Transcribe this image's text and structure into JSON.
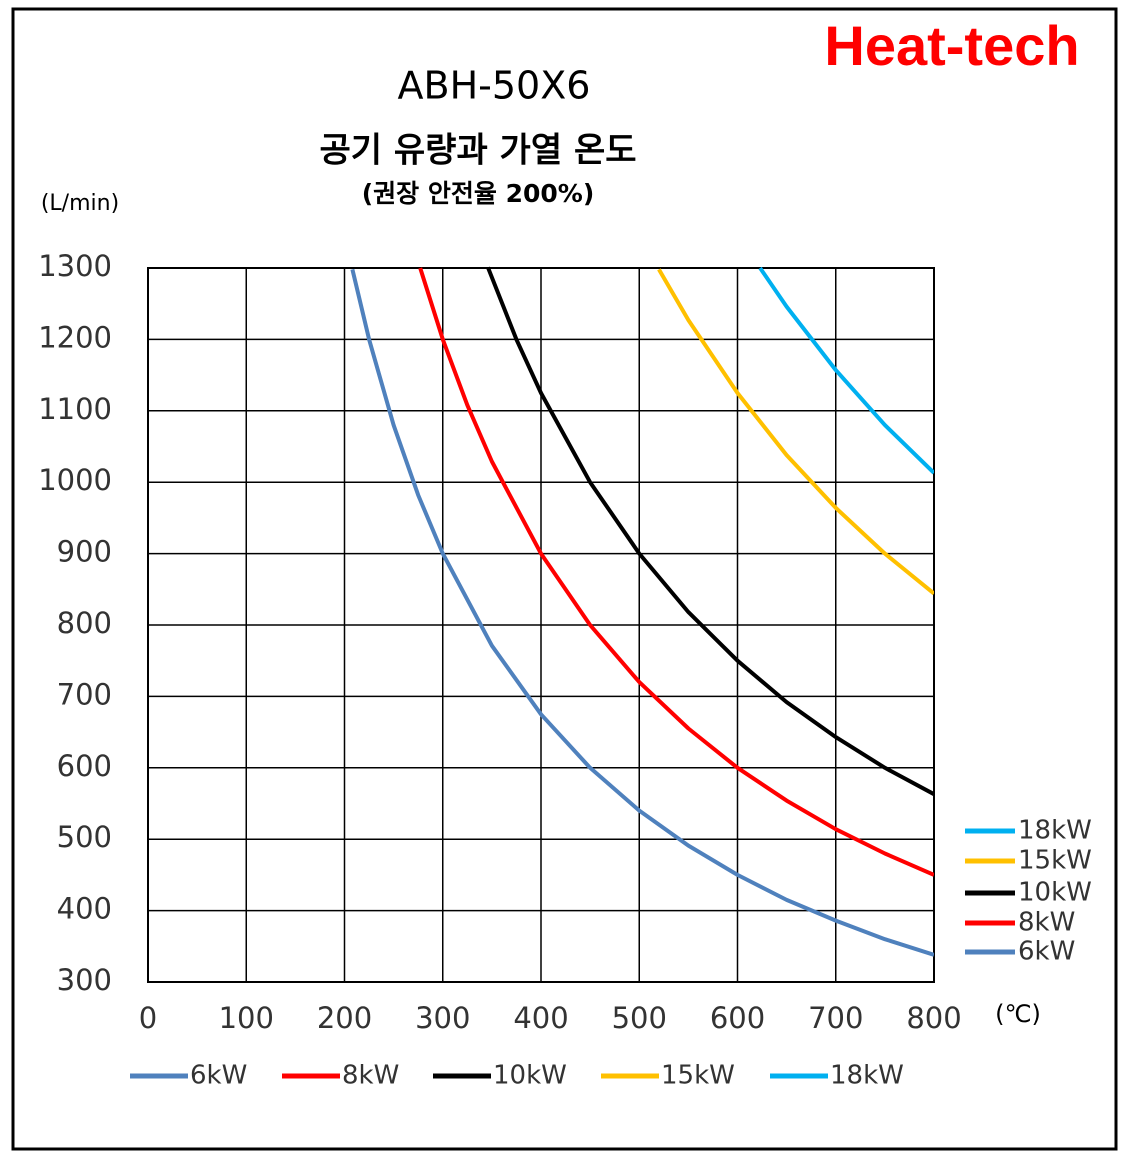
{
  "brand": "Heat-tech",
  "chart_data": {
    "type": "line",
    "title": "ABH-50X6",
    "subtitle": "공기 유량과 가열 온도",
    "note": "(권장 안전율 200%)",
    "y_label": "(L/min)",
    "x_label": "(℃)",
    "xlim": [
      0,
      800
    ],
    "xticks": [
      0,
      100,
      200,
      300,
      400,
      500,
      600,
      700,
      800
    ],
    "ylim": [
      300,
      1300
    ],
    "yticks": [
      300,
      400,
      500,
      600,
      700,
      800,
      900,
      1000,
      1100,
      1200,
      1300
    ],
    "grid": true,
    "legend": "right",
    "series": [
      {
        "name": "6kW",
        "color": "#4f81bd",
        "x": [
          208,
          225,
          250,
          275,
          300,
          350,
          400,
          450,
          500,
          550,
          600,
          650,
          700,
          750,
          800
        ],
        "values": [
          1298,
          1200,
          1080,
          982,
          900,
          771,
          675,
          600,
          540,
          491,
          450,
          415,
          386,
          360,
          338
        ]
      },
      {
        "name": "8kW",
        "color": "#ff0000",
        "x": [
          277,
          300,
          325,
          350,
          400,
          450,
          500,
          550,
          600,
          650,
          700,
          750,
          800
        ],
        "values": [
          1300,
          1200,
          1108,
          1029,
          900,
          800,
          720,
          655,
          600,
          554,
          514,
          480,
          450
        ]
      },
      {
        "name": "10kW",
        "color": "#000000",
        "x": [
          346,
          375,
          400,
          450,
          500,
          550,
          600,
          650,
          700,
          750,
          800
        ],
        "values": [
          1301,
          1200,
          1125,
          1000,
          900,
          818,
          750,
          692,
          643,
          600,
          563
        ]
      },
      {
        "name": "15kW",
        "color": "#ffc000",
        "x": [
          520,
          550,
          600,
          650,
          700,
          750,
          800
        ],
        "values": [
          1298,
          1227,
          1125,
          1038,
          964,
          900,
          844
        ]
      },
      {
        "name": "18kW",
        "color": "#00b0f0",
        "x": [
          623,
          650,
          700,
          750,
          800
        ],
        "values": [
          1300,
          1246,
          1157,
          1080,
          1013
        ]
      }
    ]
  }
}
